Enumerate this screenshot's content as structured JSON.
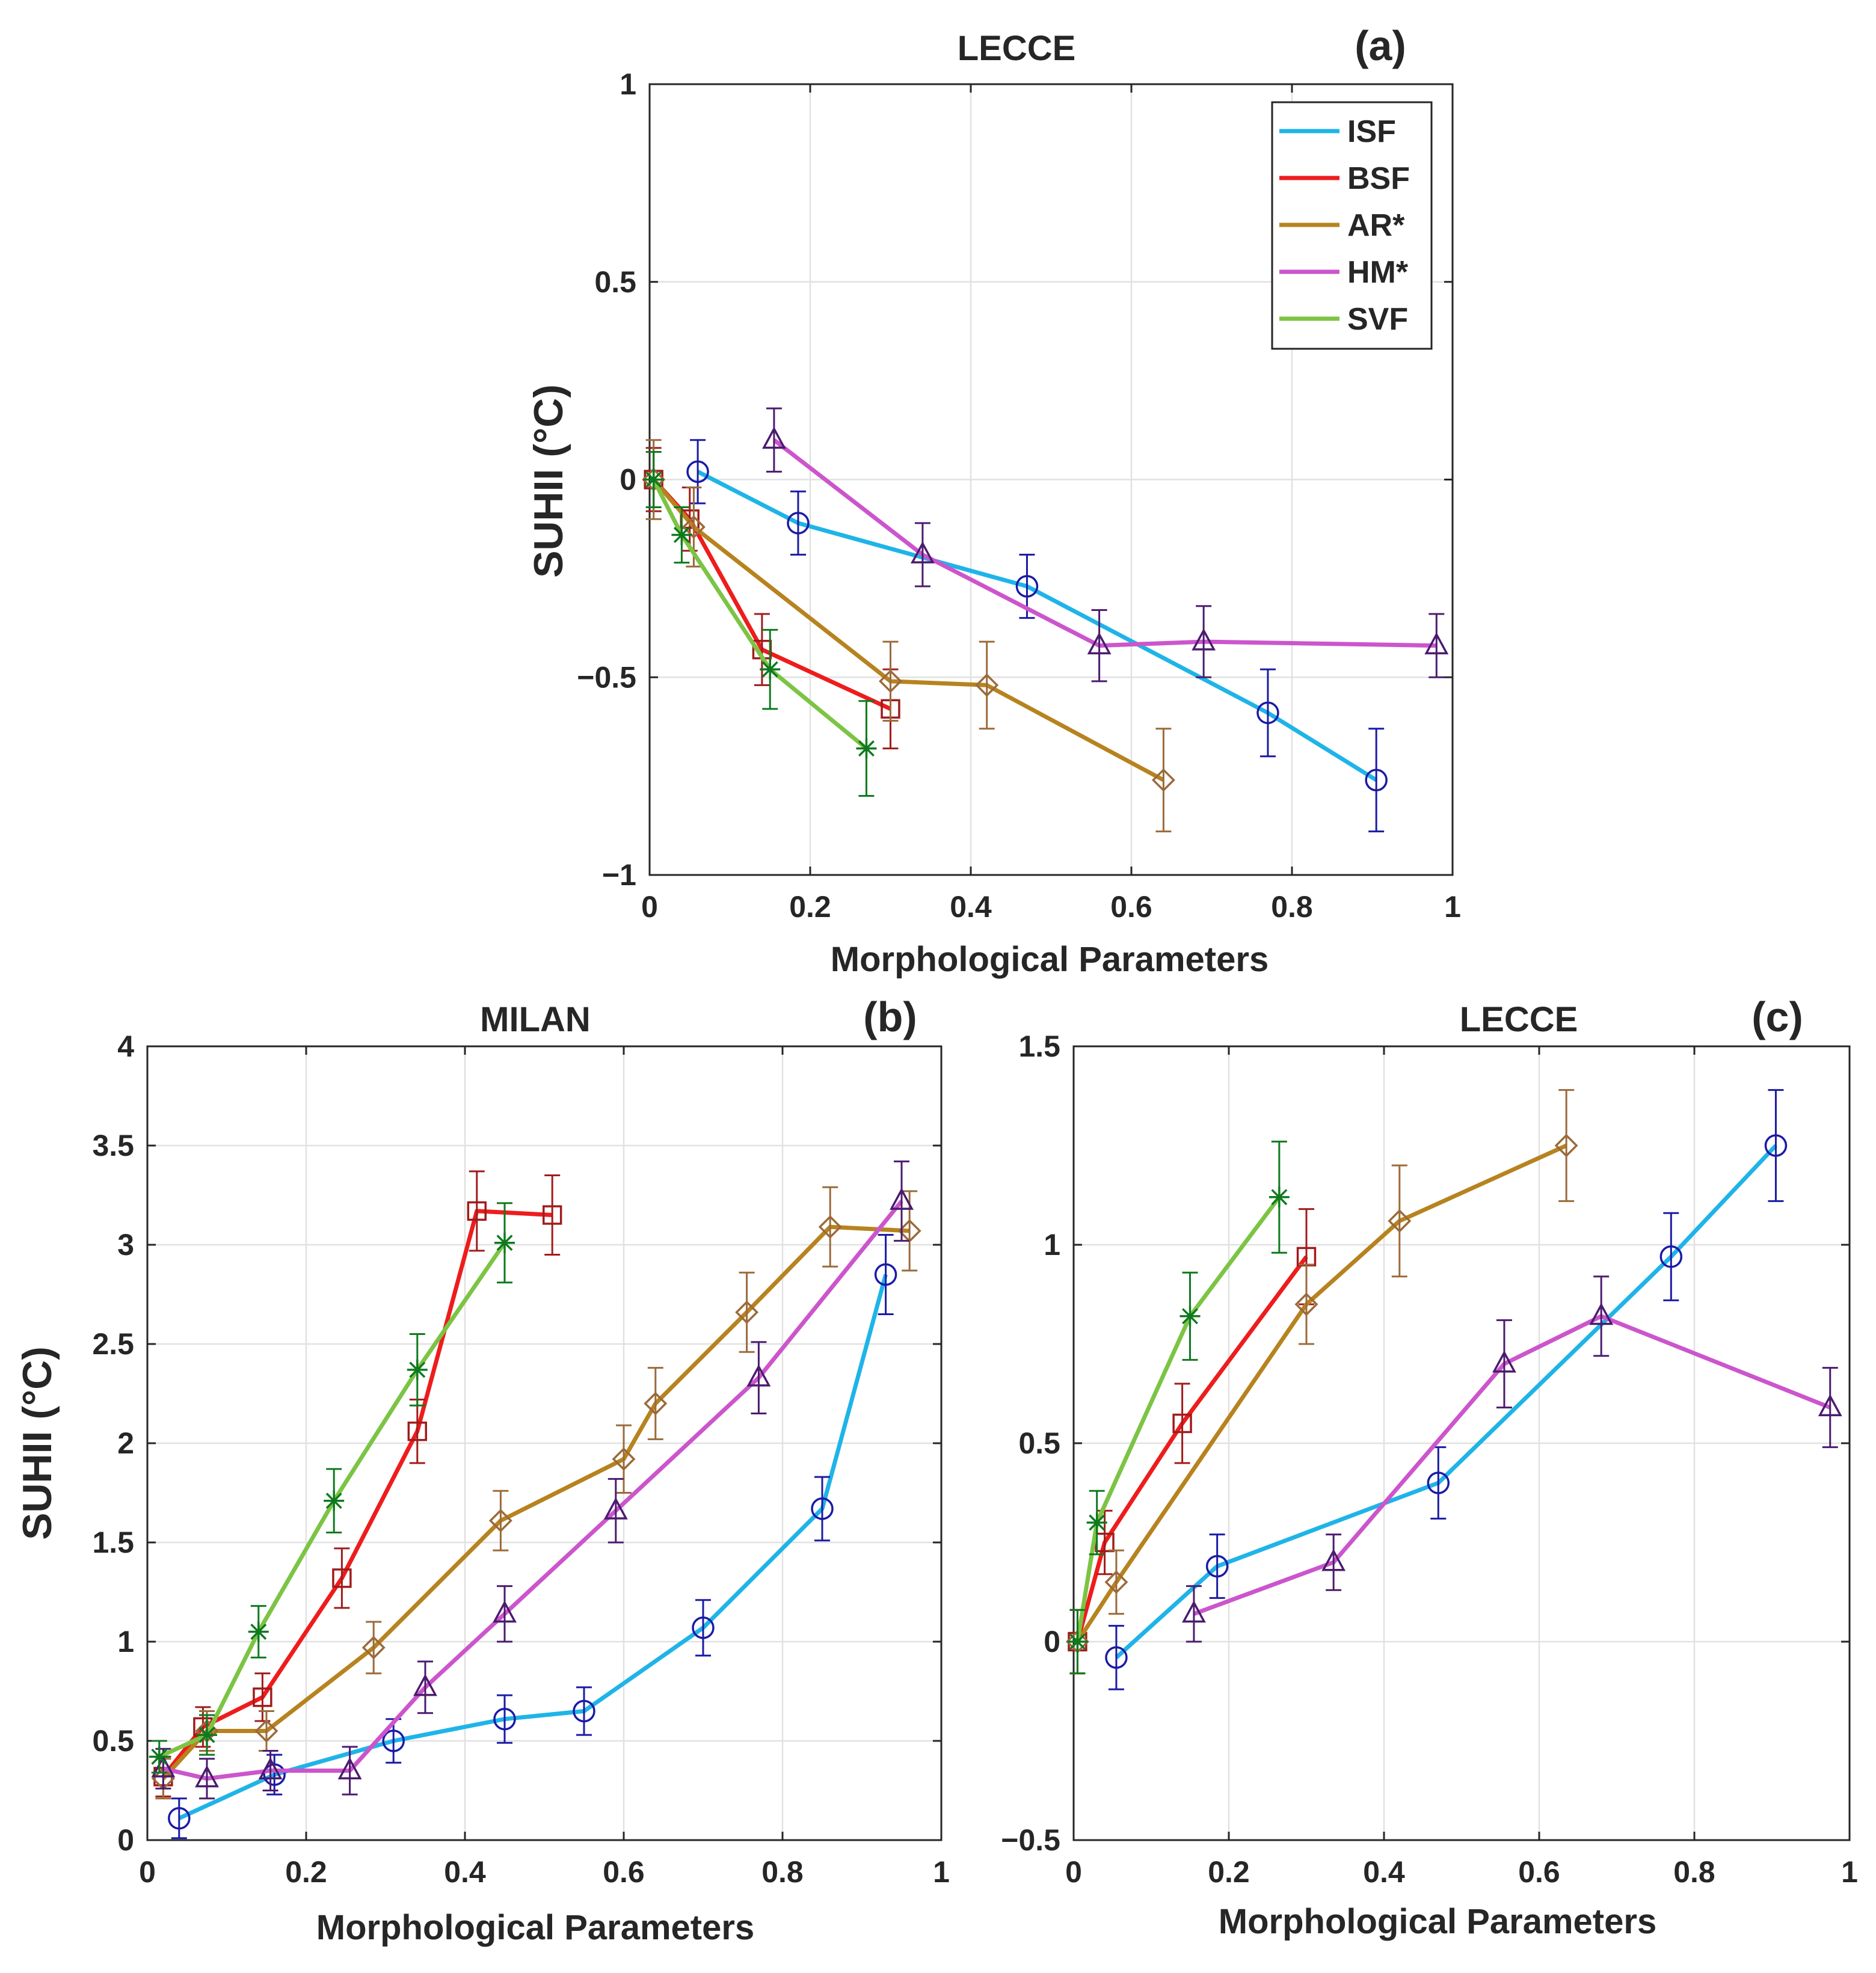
{
  "legend": [
    {
      "label": "ISF",
      "color": "#1fb4e8",
      "marker": "circle"
    },
    {
      "label": "BSF",
      "color": "#ee1c1c",
      "marker": "square"
    },
    {
      "label": "AR*",
      "color": "#b7831f",
      "marker": "diamond"
    },
    {
      "label": "HM*",
      "color": "#cc55cc",
      "marker": "triangle"
    },
    {
      "label": "SVF",
      "color": "#7cc444",
      "marker": "asterisk"
    }
  ],
  "chart_data": [
    {
      "type": "line",
      "panel": "(a)",
      "title": "LECCE",
      "xlabel": "Morphological Parameters",
      "ylabel": "SUHII (°C)",
      "xlim": [
        0,
        1
      ],
      "ylim": [
        -1,
        1
      ],
      "xticks": [
        "0",
        "0.2",
        "0.4",
        "0.6",
        "0.8",
        "1"
      ],
      "yticks": [
        "−1",
        "−0.5",
        "0",
        "0.5",
        "1"
      ],
      "grid": true,
      "legend_position": "top-right",
      "series": [
        {
          "name": "ISF",
          "x": [
            0.06,
            0.185,
            0.47,
            0.77,
            0.905
          ],
          "y": [
            0.02,
            -0.11,
            -0.27,
            -0.59,
            -0.76
          ],
          "err": [
            0.08,
            0.08,
            0.08,
            0.11,
            0.13
          ]
        },
        {
          "name": "BSF",
          "x": [
            0.005,
            0.05,
            0.14,
            0.3
          ],
          "y": [
            0.0,
            -0.1,
            -0.43,
            -0.58
          ],
          "err": [
            0.08,
            0.08,
            0.09,
            0.1
          ]
        },
        {
          "name": "AR*",
          "x": [
            0.005,
            0.055,
            0.3,
            0.42,
            0.64
          ],
          "y": [
            0.0,
            -0.12,
            -0.51,
            -0.52,
            -0.76
          ],
          "err": [
            0.1,
            0.1,
            0.1,
            0.11,
            0.13
          ]
        },
        {
          "name": "HM*",
          "x": [
            0.155,
            0.34,
            0.56,
            0.69,
            0.98
          ],
          "y": [
            0.1,
            -0.19,
            -0.42,
            -0.41,
            -0.42
          ],
          "err": [
            0.08,
            0.08,
            0.09,
            0.09,
            0.08
          ]
        },
        {
          "name": "SVF",
          "x": [
            0.005,
            0.04,
            0.15,
            0.27
          ],
          "y": [
            0.0,
            -0.14,
            -0.48,
            -0.68
          ],
          "err": [
            0.07,
            0.07,
            0.1,
            0.12
          ]
        }
      ]
    },
    {
      "type": "line",
      "panel": "(b)",
      "title": "MILAN",
      "xlabel": "Morphological Parameters",
      "ylabel": "SUHII (°C)",
      "xlim": [
        0,
        1
      ],
      "ylim": [
        0,
        4
      ],
      "xticks": [
        "0",
        "0.2",
        "0.4",
        "0.6",
        "0.8",
        "1"
      ],
      "yticks": [
        "0",
        "0.5",
        "1",
        "1.5",
        "2",
        "2.5",
        "3",
        "3.5",
        "4"
      ],
      "grid": true,
      "series": [
        {
          "name": "ISF",
          "x": [
            0.04,
            0.16,
            0.31,
            0.45,
            0.55,
            0.7,
            0.85,
            0.93
          ],
          "y": [
            0.11,
            0.33,
            0.5,
            0.61,
            0.65,
            1.07,
            1.67,
            2.85
          ],
          "err": [
            0.1,
            0.1,
            0.11,
            0.12,
            0.12,
            0.14,
            0.16,
            0.2
          ]
        },
        {
          "name": "BSF",
          "x": [
            0.02,
            0.07,
            0.145,
            0.245,
            0.34,
            0.415,
            0.51
          ],
          "y": [
            0.32,
            0.57,
            0.72,
            1.32,
            2.06,
            3.17,
            3.15
          ],
          "err": [
            0.1,
            0.1,
            0.12,
            0.15,
            0.16,
            0.2,
            0.2
          ]
        },
        {
          "name": "AR*",
          "x": [
            0.02,
            0.075,
            0.15,
            0.285,
            0.445,
            0.6,
            0.64,
            0.755,
            0.86,
            0.96
          ],
          "y": [
            0.31,
            0.55,
            0.55,
            0.97,
            1.61,
            1.92,
            2.2,
            2.66,
            3.09,
            3.07
          ],
          "err": [
            0.1,
            0.1,
            0.1,
            0.13,
            0.15,
            0.17,
            0.18,
            0.2,
            0.2,
            0.2
          ]
        },
        {
          "name": "HM*",
          "x": [
            0.02,
            0.075,
            0.155,
            0.255,
            0.35,
            0.45,
            0.59,
            0.77,
            0.95
          ],
          "y": [
            0.36,
            0.31,
            0.35,
            0.35,
            0.77,
            1.14,
            1.66,
            2.33,
            3.22
          ],
          "err": [
            0.1,
            0.1,
            0.1,
            0.12,
            0.13,
            0.14,
            0.16,
            0.18,
            0.2
          ]
        },
        {
          "name": "SVF",
          "x": [
            0.015,
            0.075,
            0.14,
            0.235,
            0.34,
            0.45
          ],
          "y": [
            0.42,
            0.53,
            1.05,
            1.71,
            2.37,
            3.01
          ],
          "err": [
            0.08,
            0.1,
            0.13,
            0.16,
            0.18,
            0.2
          ]
        }
      ]
    },
    {
      "type": "line",
      "panel": "(c)",
      "title": "LECCE",
      "xlabel": "Morphological Parameters",
      "ylabel": "",
      "xlim": [
        0,
        1
      ],
      "ylim": [
        -0.5,
        1.5
      ],
      "xticks": [
        "0",
        "0.2",
        "0.4",
        "0.6",
        "0.8",
        "1"
      ],
      "yticks": [
        "−0.5",
        "0",
        "0.5",
        "1",
        "1.5"
      ],
      "grid": true,
      "series": [
        {
          "name": "ISF",
          "x": [
            0.055,
            0.185,
            0.47,
            0.77,
            0.905
          ],
          "y": [
            -0.04,
            0.19,
            0.4,
            0.97,
            1.25
          ],
          "err": [
            0.08,
            0.08,
            0.09,
            0.11,
            0.14
          ]
        },
        {
          "name": "BSF",
          "x": [
            0.005,
            0.04,
            0.14,
            0.3
          ],
          "y": [
            0.0,
            0.25,
            0.55,
            0.97
          ],
          "err": [
            0.08,
            0.08,
            0.1,
            0.12
          ]
        },
        {
          "name": "AR*",
          "x": [
            0.005,
            0.055,
            0.3,
            0.42,
            0.635
          ],
          "y": [
            0.0,
            0.15,
            0.85,
            1.06,
            1.25
          ],
          "err": [
            0.08,
            0.08,
            0.1,
            0.14,
            0.14
          ]
        },
        {
          "name": "HM*",
          "x": [
            0.155,
            0.335,
            0.555,
            0.68,
            0.975
          ],
          "y": [
            0.07,
            0.2,
            0.7,
            0.82,
            0.59
          ],
          "err": [
            0.07,
            0.07,
            0.11,
            0.1,
            0.1
          ]
        },
        {
          "name": "SVF",
          "x": [
            0.005,
            0.03,
            0.15,
            0.265
          ],
          "y": [
            0.0,
            0.3,
            0.82,
            1.12
          ],
          "err": [
            0.08,
            0.08,
            0.11,
            0.14
          ]
        }
      ]
    }
  ]
}
